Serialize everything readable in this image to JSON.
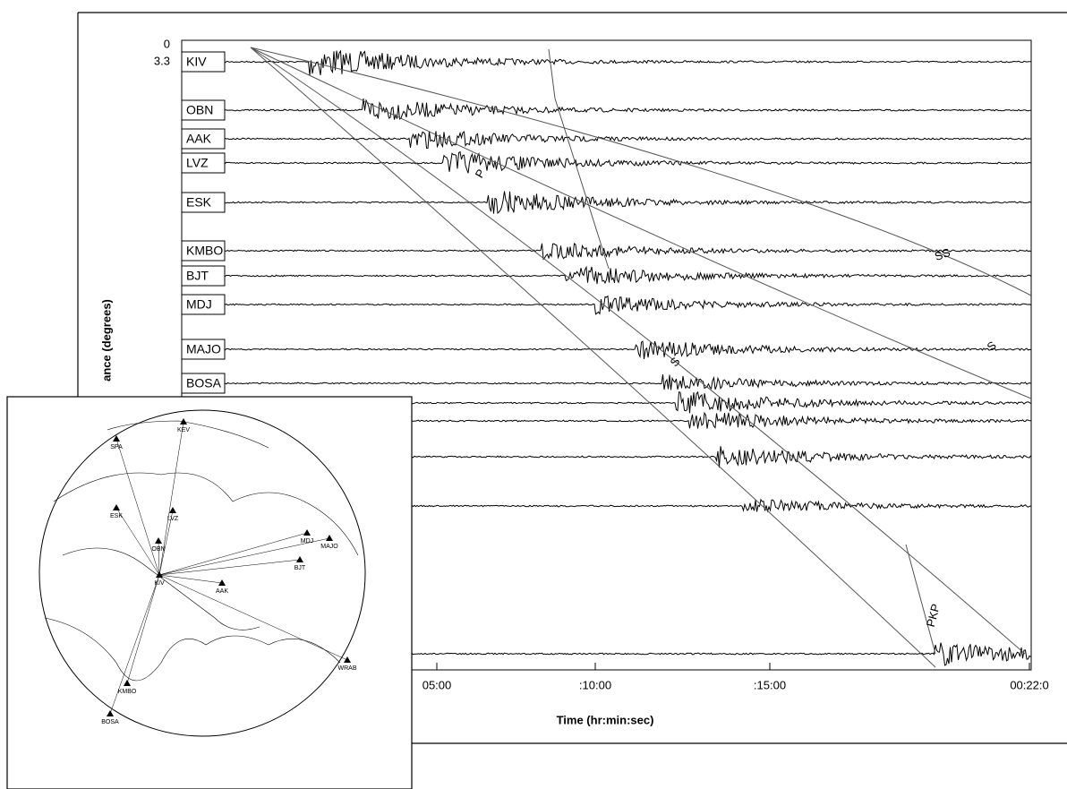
{
  "plot": {
    "y_axis": {
      "title": "ance (degrees)",
      "ticks": [
        "0",
        "3.3"
      ]
    },
    "x_axis": {
      "title": "Time (hr:min:sec)",
      "ticks": [
        "05:00",
        ":10:00",
        ":15:00",
        "00:22:0"
      ]
    },
    "stations": [
      "KIV",
      "OBN",
      "AAK",
      "LVZ",
      "ESK",
      "KMBO",
      "BJT",
      "MDJ",
      "MAJO",
      "BOSA"
    ],
    "phases": [
      "P",
      "S",
      "SS",
      "S",
      "PKP"
    ]
  },
  "map": {
    "stations": [
      "KEV",
      "SPA",
      "ESK",
      "LVZ",
      "OBN",
      "KIV",
      "AAK",
      "MDJ",
      "MAJO",
      "BJT",
      "KMBO",
      "BOSA",
      "WRAB"
    ]
  }
}
